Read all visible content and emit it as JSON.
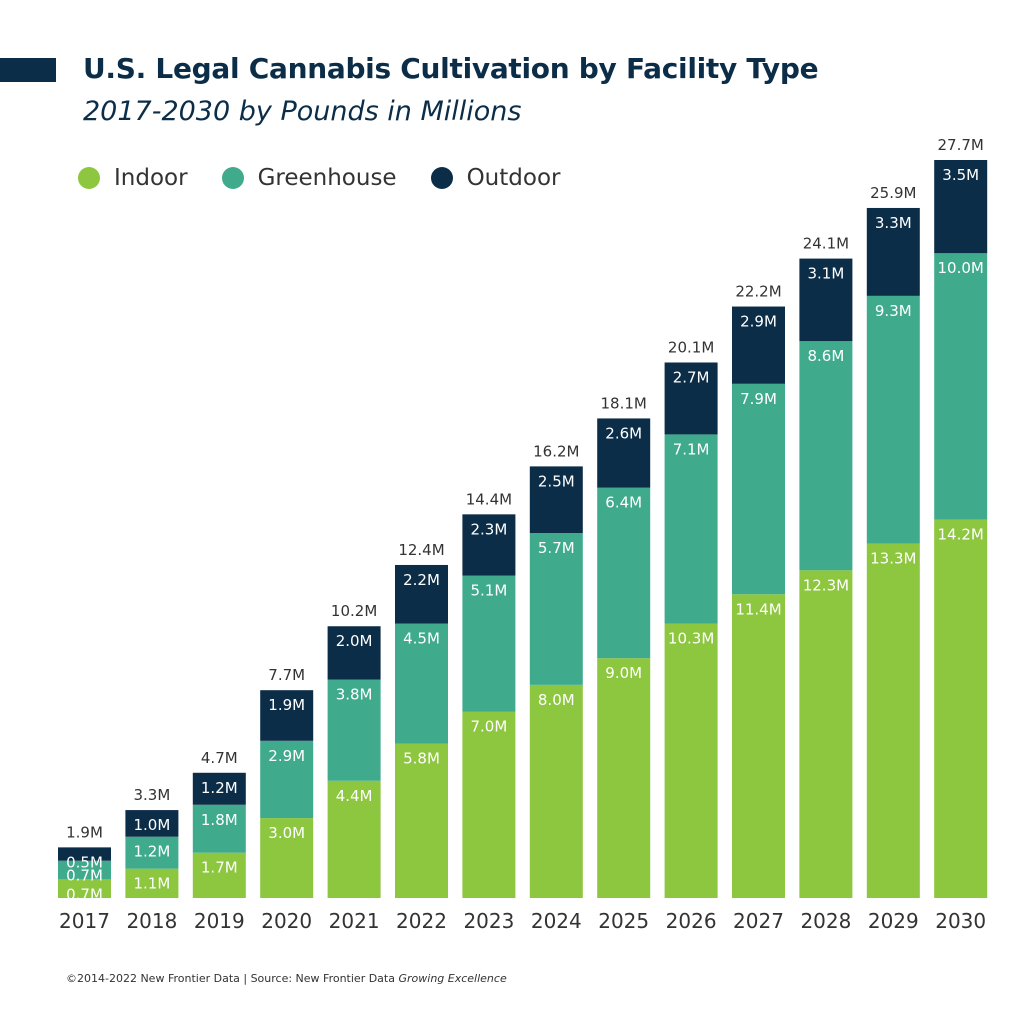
{
  "title": "U.S. Legal Cannabis Cultivation by Facility Type",
  "subtitle": "2017-2030 by Pounds in Millions",
  "colors": {
    "accent": "#0c2d48",
    "title_text": "#0c2d48",
    "indoor": "#8dc63f",
    "greenhouse": "#3fab8c",
    "outdoor": "#0c2d48",
    "text": "#333333",
    "bar_label": "#ffffff"
  },
  "legend": [
    {
      "name": "Indoor",
      "color": "#8dc63f"
    },
    {
      "name": "Greenhouse",
      "color": "#3fab8c"
    },
    {
      "name": "Outdoor",
      "color": "#0c2d48"
    }
  ],
  "footer": {
    "text": "©2014-2022 New Frontier Data | Source: New Frontier Data ",
    "italic": "Growing Excellence"
  },
  "chart_data": {
    "type": "bar",
    "stacked": true,
    "title": "U.S. Legal Cannabis Cultivation by Facility Type",
    "subtitle": "2017-2030 by Pounds in Millions",
    "categories": [
      "2017",
      "2018",
      "2019",
      "2020",
      "2021",
      "2022",
      "2023",
      "2024",
      "2025",
      "2026",
      "2027",
      "2028",
      "2029",
      "2030"
    ],
    "series": [
      {
        "name": "Indoor",
        "color": "#8dc63f",
        "values": [
          0.7,
          1.1,
          1.7,
          3.0,
          4.4,
          5.8,
          7.0,
          8.0,
          9.0,
          10.3,
          11.4,
          12.3,
          13.3,
          14.2
        ]
      },
      {
        "name": "Greenhouse",
        "color": "#3fab8c",
        "values": [
          0.7,
          1.2,
          1.8,
          2.9,
          3.8,
          4.5,
          5.1,
          5.7,
          6.4,
          7.1,
          7.9,
          8.6,
          9.3,
          10.0
        ]
      },
      {
        "name": "Outdoor",
        "color": "#0c2d48",
        "values": [
          0.5,
          1.0,
          1.2,
          1.9,
          2.0,
          2.2,
          2.3,
          2.5,
          2.6,
          2.7,
          2.9,
          3.1,
          3.3,
          3.5
        ]
      }
    ],
    "totals": [
      1.9,
      3.3,
      4.7,
      7.7,
      10.2,
      12.4,
      14.4,
      16.2,
      18.1,
      20.1,
      22.2,
      24.1,
      25.9,
      27.7
    ],
    "value_suffix": "M",
    "ylim": [
      0,
      27.7
    ],
    "grid": false,
    "legend_position": "top-left"
  }
}
